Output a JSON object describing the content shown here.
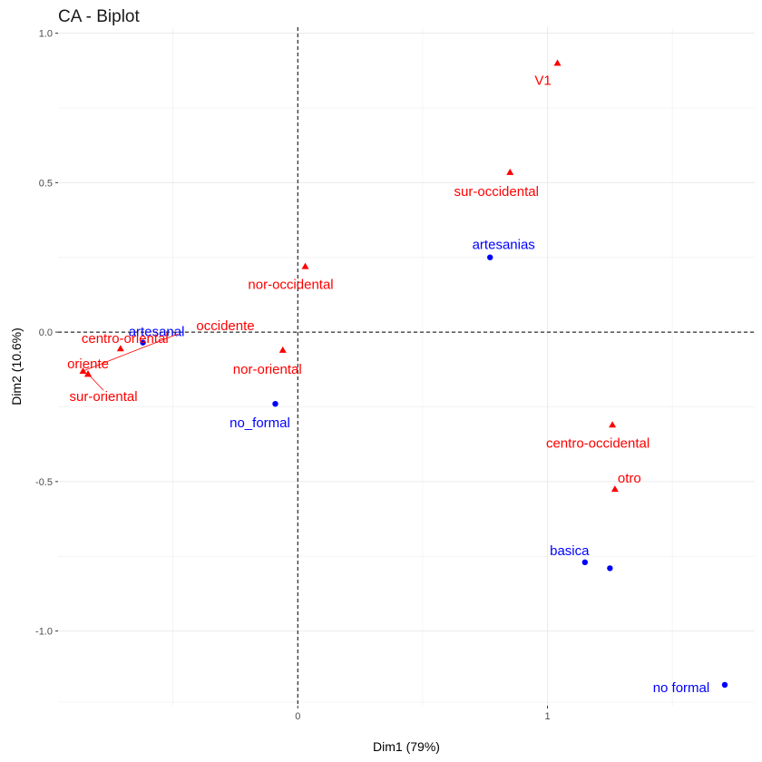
{
  "chart_data": {
    "type": "scatter",
    "title": "CA - Biplot",
    "xlabel": "Dim1 (79%)",
    "ylabel": "Dim2 (10.6%)",
    "xlim": [
      -0.96,
      1.83
    ],
    "ylim": [
      -1.25,
      1.02
    ],
    "x_ticks": [
      {
        "value": 0,
        "label": "0"
      },
      {
        "value": 1,
        "label": "1"
      }
    ],
    "y_ticks": [
      {
        "value": 1.0,
        "label": "1.0"
      },
      {
        "value": 0.5,
        "label": "0.5"
      },
      {
        "value": 0.0,
        "label": "0.0"
      },
      {
        "value": -0.5,
        "label": "-0.5"
      },
      {
        "value": -1.0,
        "label": "-1.0"
      }
    ],
    "grid": true,
    "reference_lines": {
      "x": 0,
      "y": 0,
      "style": "dashed"
    },
    "series": [
      {
        "color": "#0000ff",
        "marker": "circle",
        "points": [
          {
            "label": "artesanias",
            "x": 0.77,
            "y": 0.25
          },
          {
            "label": "artesanal",
            "x": -0.62,
            "y": -0.035
          },
          {
            "label": "no_formal",
            "x": -0.09,
            "y": -0.24
          },
          {
            "label": "basica",
            "x": 1.15,
            "y": -0.77
          },
          {
            "label": "",
            "x": 1.25,
            "y": -0.79
          },
          {
            "label": "no formal",
            "x": 1.71,
            "y": -1.18
          }
        ]
      },
      {
        "color": "#ff0000",
        "marker": "triangle",
        "points": [
          {
            "label": "V1",
            "x": 1.04,
            "y": 0.9
          },
          {
            "label": "sur-occidental",
            "x": 0.85,
            "y": 0.535
          },
          {
            "label": "nor-occidental",
            "x": 0.03,
            "y": 0.22
          },
          {
            "label": "occidente",
            "x": -0.86,
            "y": -0.13
          },
          {
            "label": "centro-oriental",
            "x": -0.71,
            "y": -0.055
          },
          {
            "label": "oriente",
            "x": -0.84,
            "y": -0.14
          },
          {
            "label": "sur-oriental",
            "x": -0.84,
            "y": -0.14
          },
          {
            "label": "nor-oriental",
            "x": -0.06,
            "y": -0.06
          },
          {
            "label": "centro-occidental",
            "x": 1.26,
            "y": -0.31
          },
          {
            "label": "otro",
            "x": 1.27,
            "y": -0.525
          }
        ]
      }
    ]
  }
}
